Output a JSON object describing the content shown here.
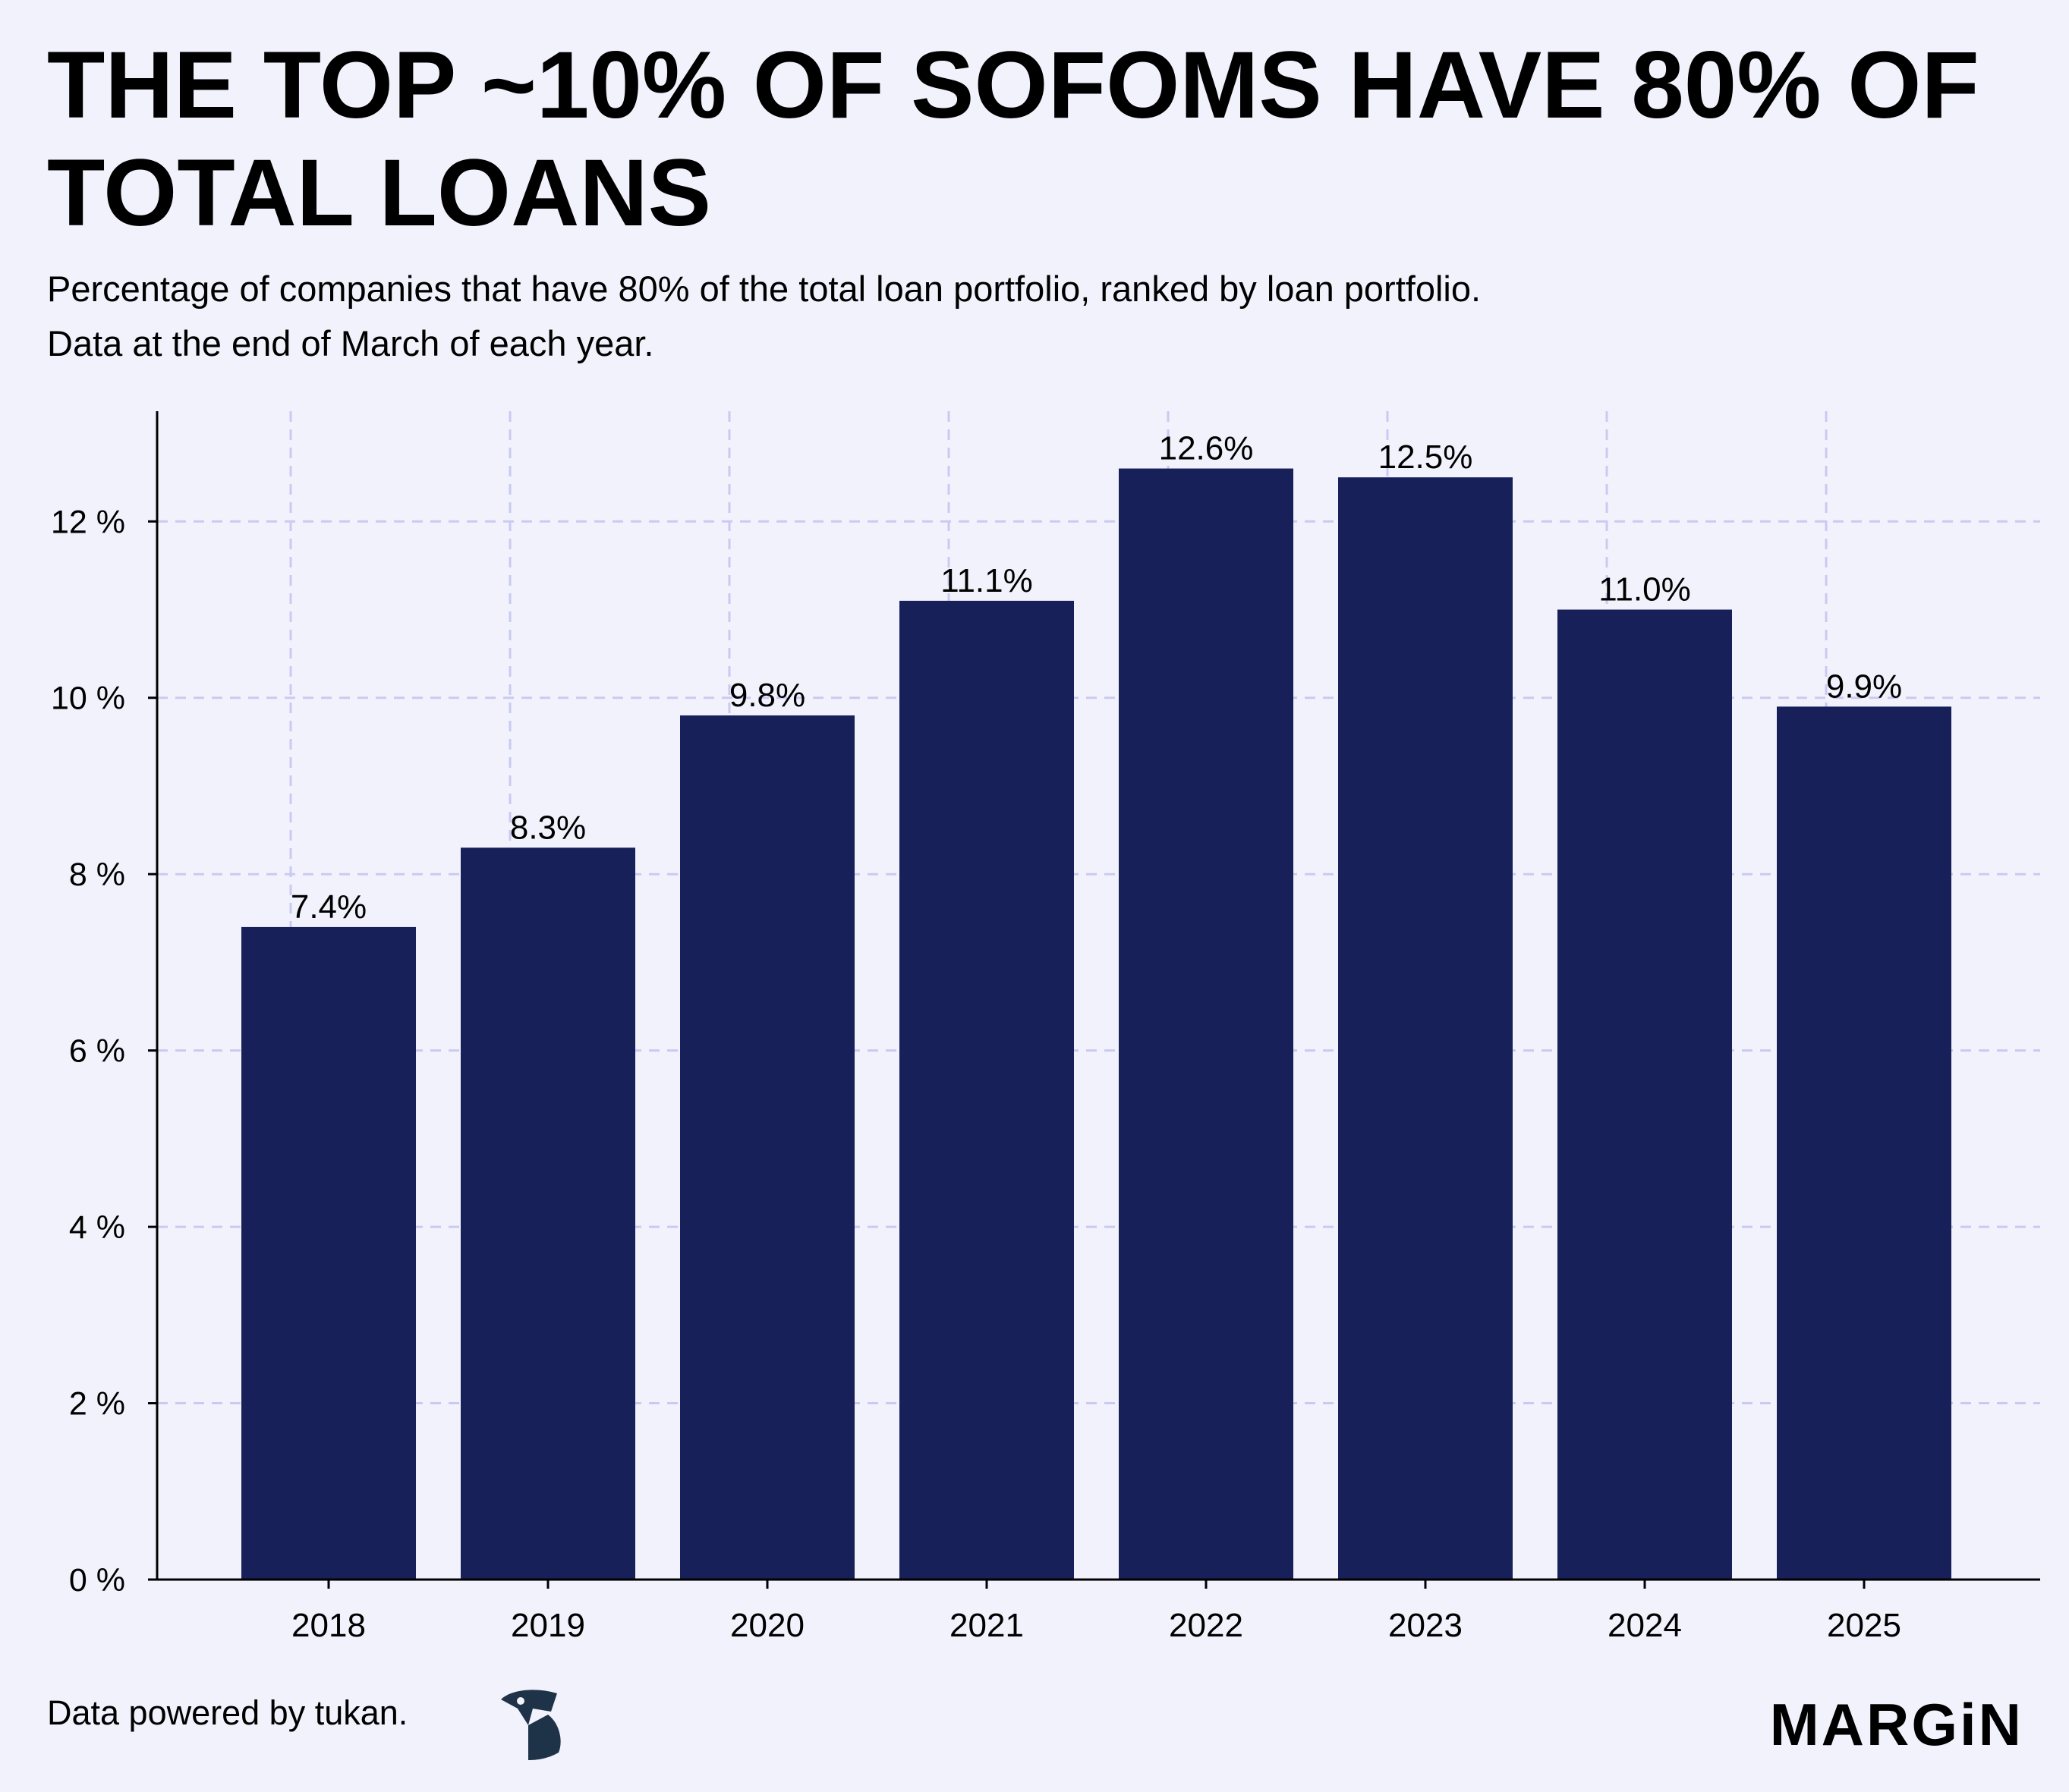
{
  "header": {
    "title": "THE TOP ~10% OF SOFOMS HAVE 80% OF TOTAL LOANS",
    "subtitle_line1": "Percentage of companies that have 80% of the total loan portfolio, ranked by loan portfolio.",
    "subtitle_line2": "Data at the end of March of each year."
  },
  "chart_data": {
    "type": "bar",
    "categories": [
      "2018",
      "2019",
      "2020",
      "2021",
      "2022",
      "2023",
      "2024",
      "2025"
    ],
    "values": [
      7.4,
      8.3,
      9.8,
      11.1,
      12.6,
      12.5,
      11.0,
      9.9
    ],
    "data_labels": [
      "7.4%",
      "8.3%",
      "9.8%",
      "11.1%",
      "12.6%",
      "12.5%",
      "11.0%",
      "9.9%"
    ],
    "title": "",
    "xlabel": "",
    "ylabel": "",
    "ylim": [
      0,
      13.25
    ],
    "yticks": [
      0,
      2,
      4,
      6,
      8,
      10,
      12
    ],
    "ytick_labels": [
      "0 %",
      "2 %",
      "4 %",
      "6 %",
      "8 %",
      "10 %",
      "12 %"
    ],
    "grid": true,
    "legend": "none",
    "bar_color": "#18205A",
    "grid_color": "#C9CAF2"
  },
  "footer": {
    "credit": "Data powered by tukan.",
    "brand": "MARGiN"
  },
  "icons": {
    "tukan_logo": "tukan-logo-icon",
    "tukan_logo_color": "#1E3347"
  }
}
